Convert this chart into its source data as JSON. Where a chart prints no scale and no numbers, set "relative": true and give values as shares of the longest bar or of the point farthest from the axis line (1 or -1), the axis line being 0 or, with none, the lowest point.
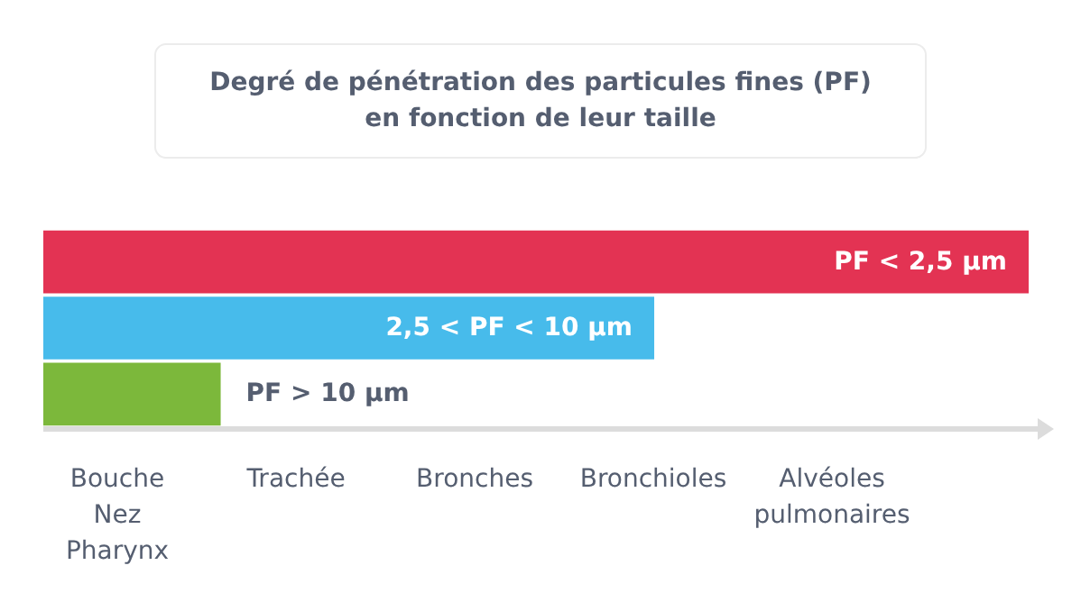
{
  "chart_data": {
    "type": "bar",
    "orientation": "horizontal",
    "relative": true,
    "title": "Degré de pénétration des particules fines (PF)\nen fonction de leur taille",
    "categories": [
      "PF < 2,5 µm",
      "2,5 < PF < 10 µm",
      "PF > 10 µm"
    ],
    "values": [
      1,
      0.62,
      0.18
    ],
    "colors": [
      "#e33353",
      "#47bbeb",
      "#7cb83b"
    ],
    "annotations": [
      "Bouche\nNez\nPharynx",
      "Trachée",
      "Bronches",
      "Bronchioles",
      "Alvéoles\npulmonaires"
    ]
  }
}
